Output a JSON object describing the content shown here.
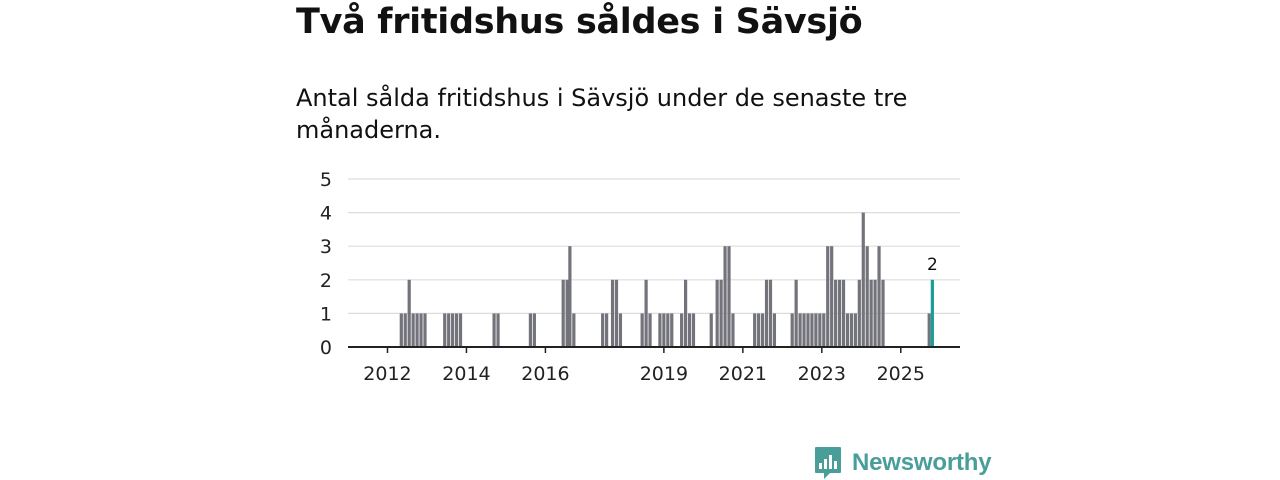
{
  "header": {
    "title": "Två fritidshus såldes i Sävsjö",
    "subtitle": "Antal sålda fritidshus i Sävsjö under de senaste tre månaderna."
  },
  "brand": {
    "name": "Newsworthy",
    "color": "#4a9e9a",
    "icon": "newsworthy-logo-icon"
  },
  "colors": {
    "bar": "#73737b",
    "highlight": "#1a9e98",
    "grid": "#dddddd",
    "axis": "#222222"
  },
  "chart_data": {
    "type": "bar",
    "title": "",
    "xlabel": "",
    "ylabel": "",
    "ylim": [
      0,
      5
    ],
    "yticks": [
      0,
      1,
      2,
      3,
      4,
      5
    ],
    "xtick_labels": [
      "2012",
      "2014",
      "2016",
      "2019",
      "2021",
      "2023",
      "2025"
    ],
    "xtick_values": [
      2012.0,
      2014.0,
      2016.0,
      2019.0,
      2021.0,
      2023.0,
      2025.0
    ],
    "xlim": [
      2011.0,
      2026.5
    ],
    "grid": true,
    "legend": "none",
    "x": [
      2012.35,
      2012.45,
      2012.55,
      2012.65,
      2012.75,
      2012.85,
      2012.95,
      2013.45,
      2013.55,
      2013.65,
      2013.75,
      2013.85,
      2014.7,
      2014.8,
      2015.62,
      2015.72,
      2016.45,
      2016.55,
      2016.62,
      2016.72,
      2017.45,
      2017.55,
      2017.7,
      2017.8,
      2017.9,
      2018.45,
      2018.55,
      2018.65,
      2018.9,
      2019.0,
      2019.1,
      2019.2,
      2019.45,
      2019.55,
      2019.65,
      2019.75,
      2020.2,
      2020.35,
      2020.45,
      2020.55,
      2020.65,
      2020.75,
      2021.3,
      2021.4,
      2021.5,
      2021.6,
      2021.7,
      2021.8,
      2022.25,
      2022.35,
      2022.45,
      2022.55,
      2022.65,
      2022.75,
      2022.85,
      2022.95,
      2023.05,
      2023.15,
      2023.25,
      2023.35,
      2023.45,
      2023.55,
      2023.65,
      2023.75,
      2023.85,
      2023.95,
      2024.05,
      2024.15,
      2024.25,
      2024.35,
      2024.45,
      2024.55,
      2024.65,
      2024.75,
      2024.85,
      2025.72,
      2025.8
    ],
    "values": [
      1,
      1,
      2,
      1,
      1,
      1,
      1,
      1,
      1,
      1,
      1,
      1,
      1,
      1,
      1,
      1,
      2,
      2,
      3,
      1,
      1,
      1,
      2,
      2,
      1,
      1,
      2,
      1,
      1,
      1,
      1,
      1,
      1,
      2,
      1,
      1,
      1,
      2,
      2,
      3,
      3,
      1,
      1,
      1,
      1,
      2,
      2,
      1,
      1,
      2,
      1,
      1,
      1,
      1,
      1,
      1,
      1,
      3,
      3,
      2,
      2,
      2,
      1,
      1,
      1,
      2,
      4,
      3,
      2,
      2,
      3,
      2,
      0,
      0,
      0,
      1,
      2
    ],
    "highlight": {
      "x": 2025.8,
      "value": 2,
      "label": "2"
    }
  }
}
